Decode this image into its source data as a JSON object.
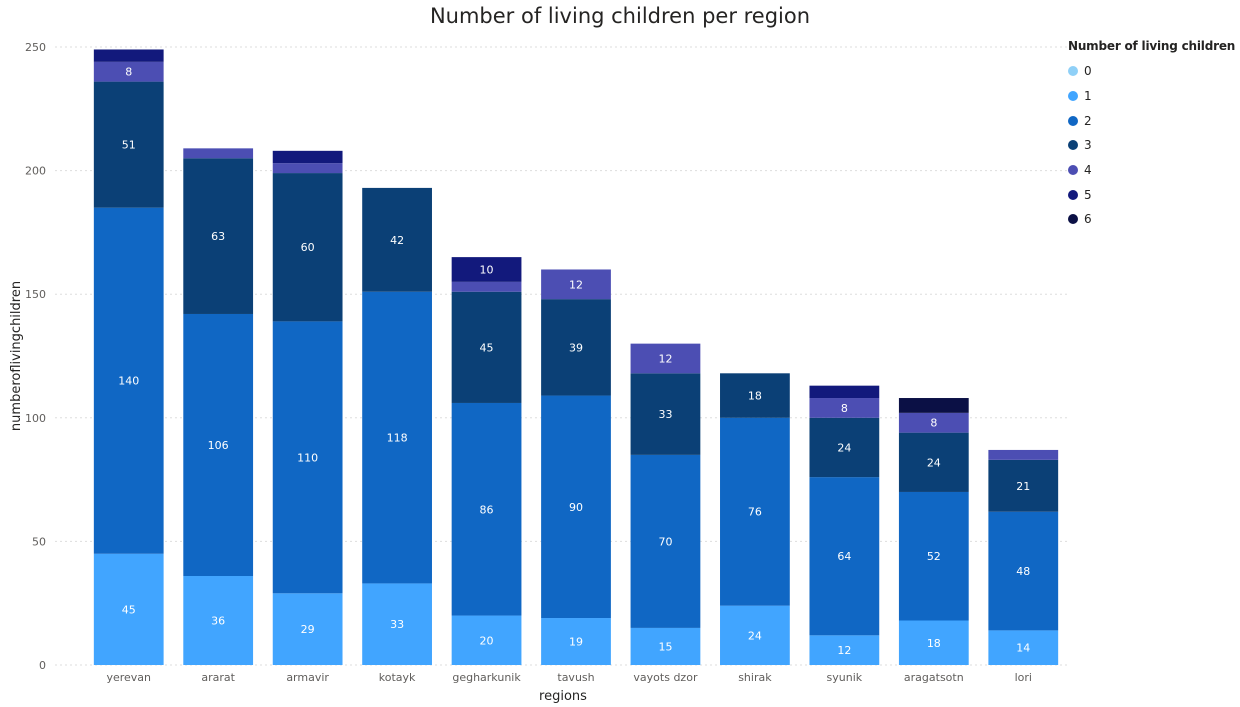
{
  "chart_data": {
    "type": "bar",
    "stacked": true,
    "title": "Number of living children per region",
    "xlabel": "regions",
    "ylabel": "numberoflivingchildren",
    "ylim": [
      0,
      250
    ],
    "yticks": [
      0,
      50,
      100,
      150,
      200,
      250
    ],
    "grid": true,
    "legend_position": "top-right",
    "legend_title": "Number of living children",
    "categories": [
      "yerevan",
      "ararat",
      "armavir",
      "kotayk",
      "gegharkunik",
      "tavush",
      "vayots dzor",
      "shirak",
      "syunik",
      "aragatsotn",
      "lori"
    ],
    "series": [
      {
        "name": "0",
        "color": "#8fd0f7",
        "values": [
          0,
          0,
          0,
          0,
          0,
          0,
          0,
          0,
          0,
          0,
          0
        ]
      },
      {
        "name": "1",
        "color": "#41a5ff",
        "values": [
          45,
          36,
          29,
          33,
          20,
          19,
          15,
          24,
          12,
          18,
          14
        ]
      },
      {
        "name": "2",
        "color": "#1067c4",
        "values": [
          140,
          106,
          110,
          118,
          86,
          90,
          70,
          76,
          64,
          52,
          48
        ]
      },
      {
        "name": "3",
        "color": "#0b4076",
        "values": [
          51,
          63,
          60,
          42,
          45,
          39,
          33,
          18,
          24,
          24,
          21
        ]
      },
      {
        "name": "4",
        "color": "#4c4eb3",
        "values": [
          8,
          4,
          4,
          0,
          4,
          12,
          12,
          0,
          8,
          8,
          4
        ]
      },
      {
        "name": "5",
        "color": "#12197c",
        "values": [
          5,
          0,
          5,
          0,
          10,
          0,
          0,
          0,
          5,
          0,
          0
        ]
      },
      {
        "name": "6",
        "color": "#0b1045",
        "values": [
          0,
          0,
          0,
          0,
          0,
          0,
          0,
          0,
          0,
          6,
          0
        ]
      }
    ],
    "data_labels": [
      [
        null,
        "45",
        "140",
        "51",
        "8",
        null,
        null
      ],
      [
        null,
        "36",
        "106",
        "63",
        null,
        null,
        null
      ],
      [
        null,
        "29",
        "110",
        "60",
        null,
        null,
        null
      ],
      [
        null,
        "33",
        "118",
        "42",
        null,
        null,
        null
      ],
      [
        null,
        "20",
        "86",
        "45",
        null,
        "10",
        null
      ],
      [
        null,
        "19",
        "90",
        "39",
        "12",
        null,
        null
      ],
      [
        null,
        "15",
        "70",
        "33",
        "12",
        null,
        null
      ],
      [
        null,
        "24",
        "76",
        "18",
        null,
        null,
        null
      ],
      [
        null,
        "12",
        "64",
        "24",
        "8",
        null,
        null
      ],
      [
        null,
        "18",
        "52",
        "24",
        "8",
        null,
        null
      ],
      [
        null,
        "14",
        "48",
        "21",
        null,
        null,
        null
      ]
    ]
  }
}
